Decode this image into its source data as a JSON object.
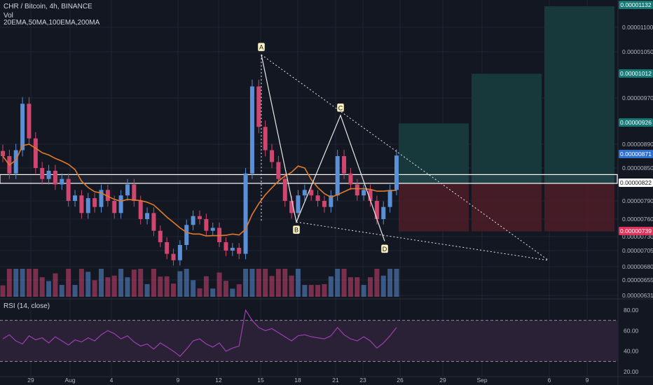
{
  "legend": {
    "title": "CHR / Bitcoin, 4h, BINANCE",
    "volume": "Vol",
    "indicators": "20EMA,50MA,100EMA,200MA",
    "rsi": "RSI (14, close)"
  },
  "colors": {
    "background": "#131722",
    "grid": "#1f2433",
    "up": "#5b8fd6",
    "down": "#d0466f",
    "ma": "#e07a2a",
    "rsi_line": "#9c3fb0",
    "rsi_band": "#2a2137",
    "tp_zone": "#173b3d",
    "sl_zone": "#4a1d27",
    "tag_teal": "#157a76",
    "tag_blue": "#2f6fd0",
    "tag_red": "#e0315a",
    "tag_white": "#ffffff"
  },
  "chart_data": [
    {
      "type": "candlestick",
      "title": "CHR / Bitcoin, 4h, BINANCE",
      "y_ticks": [
        "0.00001100",
        "0.00001050",
        "0.00000970",
        "0.00000890",
        "0.00000850",
        "0.00000790",
        "0.00000760",
        "0.00000730",
        "0.00000705",
        "0.00000680",
        "0.00000655",
        "0.00000631"
      ],
      "x_ticks": [
        "29",
        "Aug",
        "4",
        "9",
        "12",
        "15",
        "18",
        "21",
        "23",
        "26",
        "29",
        "Sep",
        "6",
        "9"
      ],
      "price_tags": [
        {
          "label": "0.00001132",
          "style": "teal"
        },
        {
          "label": "0.00001012",
          "style": "teal"
        },
        {
          "label": "0.00000926",
          "style": "teal"
        },
        {
          "label": "0.00000871",
          "style": "blue"
        },
        {
          "label": "0.00000822",
          "style": "white"
        },
        {
          "label": "0.00000739",
          "style": "red"
        }
      ],
      "pattern_points": [
        {
          "label": "A",
          "price": 1.045e-05
        },
        {
          "label": "B",
          "price": 7.55e-06
        },
        {
          "label": "C",
          "price": 9.4e-06
        },
        {
          "label": "D",
          "price": 7.22e-06
        }
      ],
      "support_zone": [
        8.22e-06,
        8.38e-06
      ],
      "target_zones_top": [
        9.26e-06,
        1.012e-05,
        1.132e-05
      ],
      "stop_level": 7.39e-06,
      "current_price": 8.71e-06,
      "close_series": [
        8.7e-06,
        8.4e-06,
        8.8e-06,
        9.6e-06,
        9e-06,
        8.5e-06,
        8.3e-06,
        8.45e-06,
        8.2e-06,
        8.3e-06,
        7.9e-06,
        8e-06,
        7.7e-06,
        7.95e-06,
        7.8e-06,
        8.1e-06,
        7.9e-06,
        7.7e-06,
        8e-06,
        8.2e-06,
        7.9e-06,
        7.6e-06,
        7.7e-06,
        7.4e-06,
        7.2e-06,
        7e-06,
        6.9e-06,
        7.15e-06,
        7.5e-06,
        7.65e-06,
        7.6e-06,
        7.4e-06,
        7.45e-06,
        7.2e-06,
        7.05e-06,
        7.1e-06,
        7e-06,
        8.4e-06,
        9.9e-06,
        9.2e-06,
        8.8e-06,
        8.6e-06,
        8.3e-06,
        7.9e-06,
        7.7e-06,
        8e-06,
        8.1e-06,
        8e-06,
        7.9e-06,
        7.8e-06,
        8e-06,
        8.7e-06,
        8.4e-06,
        8.2e-06,
        8e-06,
        8.1e-06,
        7.9e-06,
        7.6e-06,
        7.8e-06,
        8.1e-06,
        8.71e-06
      ]
    },
    {
      "type": "line",
      "title": "RSI (14, close)",
      "y_ticks": [
        "80.00",
        "60.00",
        "40.00",
        "20.00"
      ],
      "band": [
        30,
        70
      ],
      "values": [
        52,
        56,
        50,
        47,
        55,
        51,
        53,
        48,
        54,
        50,
        46,
        51,
        49,
        53,
        50,
        56,
        60,
        57,
        52,
        55,
        49,
        45,
        47,
        42,
        48,
        44,
        40,
        35,
        42,
        50,
        52,
        47,
        44,
        48,
        40,
        43,
        45,
        80,
        70,
        63,
        60,
        62,
        58,
        54,
        50,
        55,
        56,
        54,
        53,
        52,
        55,
        63,
        56,
        52,
        50,
        54,
        50,
        43,
        48,
        55,
        63
      ]
    }
  ]
}
